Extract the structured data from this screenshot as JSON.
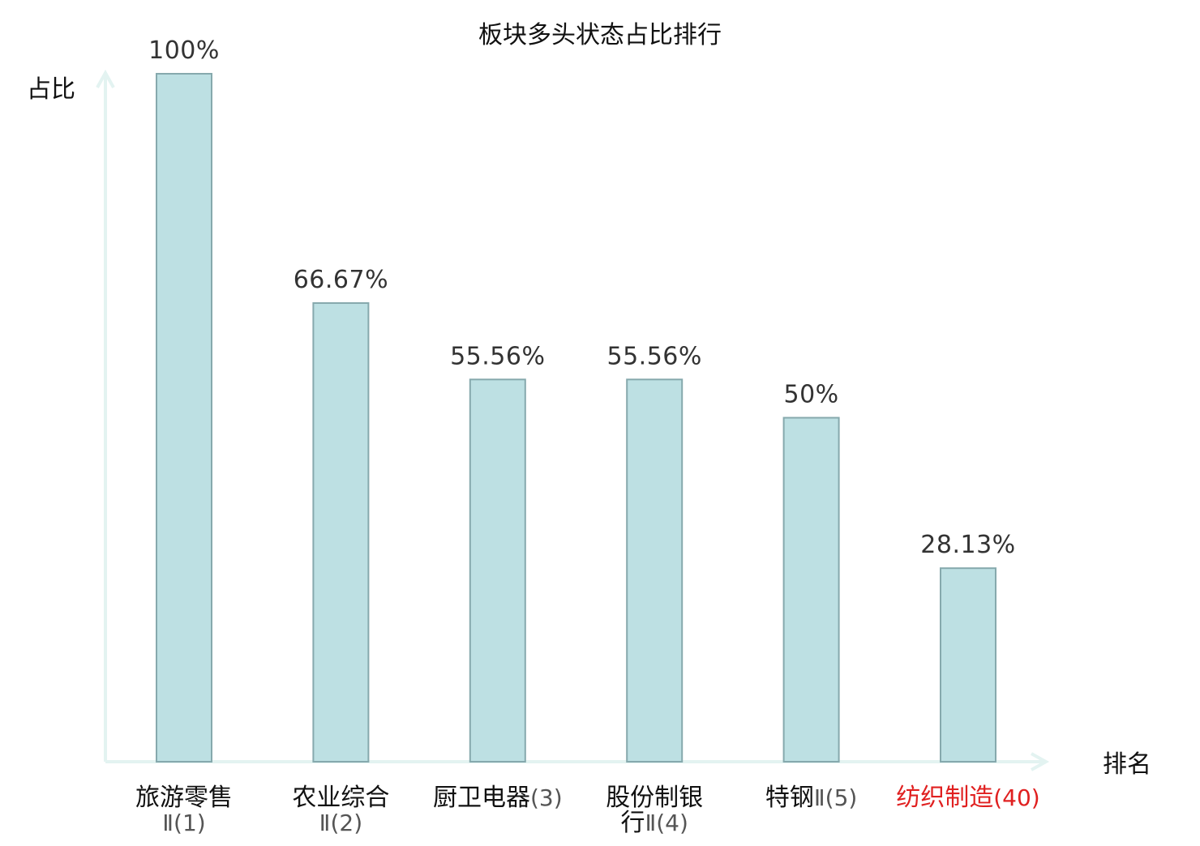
{
  "chart_data": {
    "type": "bar",
    "title": "板块多头状态占比排行",
    "xlabel": "排名",
    "ylabel": "占比",
    "ylim": [
      0,
      100
    ],
    "grid": false,
    "categories": [
      {
        "name": "旅游零售",
        "rank": "Ⅱ(1)",
        "highlight": false
      },
      {
        "name": "农业综合",
        "rank": "Ⅱ(2)",
        "highlight": false
      },
      {
        "name": "厨卫电器",
        "rank": "(3)",
        "highlight": false
      },
      {
        "name": "股份制银",
        "rank": "行Ⅱ(4)",
        "highlight": false
      },
      {
        "name": "特钢",
        "rank": "Ⅱ(5)",
        "highlight": false
      },
      {
        "name": "纺织制造",
        "rank": "(40)",
        "highlight": true
      }
    ],
    "values": [
      100,
      66.67,
      55.56,
      55.56,
      50,
      28.13
    ],
    "value_labels": [
      "100%",
      "66.67%",
      "55.56%",
      "55.56%",
      "50%",
      "28.13%"
    ],
    "colors": {
      "bar_fill": "#bde0e3",
      "bar_stroke": "#86a9ad",
      "axis": "#e3f3f1",
      "text": "#111111",
      "value_text": "#333333",
      "rank_text": "#555555",
      "highlight": "#e02020"
    }
  }
}
